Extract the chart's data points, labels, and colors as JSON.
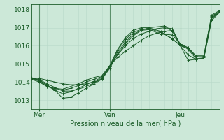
{
  "xlabel": "Pression niveau de la mer( hPa )",
  "bg_color": "#cce8d8",
  "grid_color_minor": "#b8d9c8",
  "grid_color_major": "#a0c8b0",
  "line_color": "#1a5c28",
  "tick_label_color": "#1a5c28",
  "xlim": [
    0,
    96
  ],
  "ylim": [
    1012.5,
    1018.3
  ],
  "yticks": [
    1013,
    1014,
    1015,
    1016,
    1017,
    1018
  ],
  "xtick_positions": [
    4,
    40,
    76
  ],
  "xtick_labels": [
    "Mer",
    "Ven",
    "Jeu"
  ],
  "vlines": [
    4,
    40,
    76
  ],
  "lines": [
    [
      0,
      1014.2,
      4,
      1014.2,
      8,
      1014.1,
      12,
      1014.0,
      16,
      1013.9,
      20,
      1013.85,
      24,
      1013.85,
      28,
      1013.9,
      32,
      1014.0,
      36,
      1014.15,
      40,
      1014.9,
      44,
      1015.35,
      48,
      1015.7,
      52,
      1016.0,
      56,
      1016.3,
      60,
      1016.55,
      64,
      1016.7,
      68,
      1016.8,
      72,
      1016.85,
      76,
      1016.1,
      80,
      1015.8,
      84,
      1015.3,
      88,
      1015.3,
      92,
      1017.5,
      96,
      1017.85
    ],
    [
      0,
      1014.2,
      4,
      1014.15,
      8,
      1013.9,
      12,
      1013.7,
      16,
      1013.5,
      20,
      1013.5,
      24,
      1013.6,
      28,
      1013.75,
      32,
      1013.95,
      36,
      1014.2,
      40,
      1014.85,
      44,
      1015.5,
      48,
      1016.0,
      52,
      1016.4,
      56,
      1016.65,
      60,
      1016.8,
      64,
      1016.95,
      68,
      1017.0,
      72,
      1016.95,
      76,
      1016.0,
      80,
      1015.5,
      84,
      1015.25,
      88,
      1015.3,
      92,
      1017.4,
      96,
      1017.85
    ],
    [
      0,
      1014.25,
      4,
      1014.1,
      8,
      1013.85,
      12,
      1013.55,
      16,
      1013.1,
      20,
      1013.15,
      24,
      1013.4,
      28,
      1013.65,
      32,
      1013.9,
      36,
      1014.15,
      40,
      1014.75,
      44,
      1015.55,
      48,
      1016.1,
      52,
      1016.55,
      56,
      1016.85,
      60,
      1017.0,
      64,
      1017.05,
      68,
      1017.1,
      72,
      1016.8,
      76,
      1016.0,
      80,
      1015.2,
      84,
      1015.25,
      88,
      1015.3,
      92,
      1017.55,
      96,
      1017.85
    ],
    [
      0,
      1014.2,
      4,
      1014.1,
      8,
      1013.8,
      12,
      1013.55,
      16,
      1013.35,
      20,
      1013.45,
      24,
      1013.65,
      28,
      1013.85,
      32,
      1014.05,
      36,
      1014.25,
      40,
      1014.8,
      44,
      1015.65,
      48,
      1016.2,
      52,
      1016.65,
      56,
      1016.85,
      60,
      1016.9,
      66,
      1016.65,
      72,
      1016.6,
      76,
      1016.1,
      80,
      1015.9,
      84,
      1015.4,
      88,
      1015.35,
      92,
      1017.6,
      96,
      1017.9
    ],
    [
      0,
      1014.2,
      4,
      1014.05,
      8,
      1013.75,
      12,
      1013.6,
      16,
      1013.55,
      20,
      1013.65,
      24,
      1013.8,
      28,
      1014.0,
      32,
      1014.15,
      36,
      1014.3,
      40,
      1014.85,
      44,
      1015.75,
      48,
      1016.35,
      52,
      1016.75,
      56,
      1016.9,
      60,
      1016.95,
      66,
      1016.75,
      72,
      1016.4,
      76,
      1016.0,
      80,
      1015.85,
      84,
      1015.4,
      88,
      1015.4,
      92,
      1017.65,
      96,
      1017.9
    ],
    [
      0,
      1014.15,
      4,
      1014.0,
      8,
      1013.75,
      12,
      1013.65,
      16,
      1013.6,
      20,
      1013.75,
      24,
      1013.9,
      28,
      1014.1,
      32,
      1014.25,
      36,
      1014.35,
      40,
      1014.9,
      44,
      1015.8,
      48,
      1016.45,
      52,
      1016.85,
      56,
      1017.0,
      60,
      1017.0,
      66,
      1016.8,
      72,
      1016.35,
      76,
      1016.05,
      80,
      1015.9,
      84,
      1015.45,
      88,
      1015.45,
      92,
      1017.7,
      96,
      1017.95
    ]
  ]
}
